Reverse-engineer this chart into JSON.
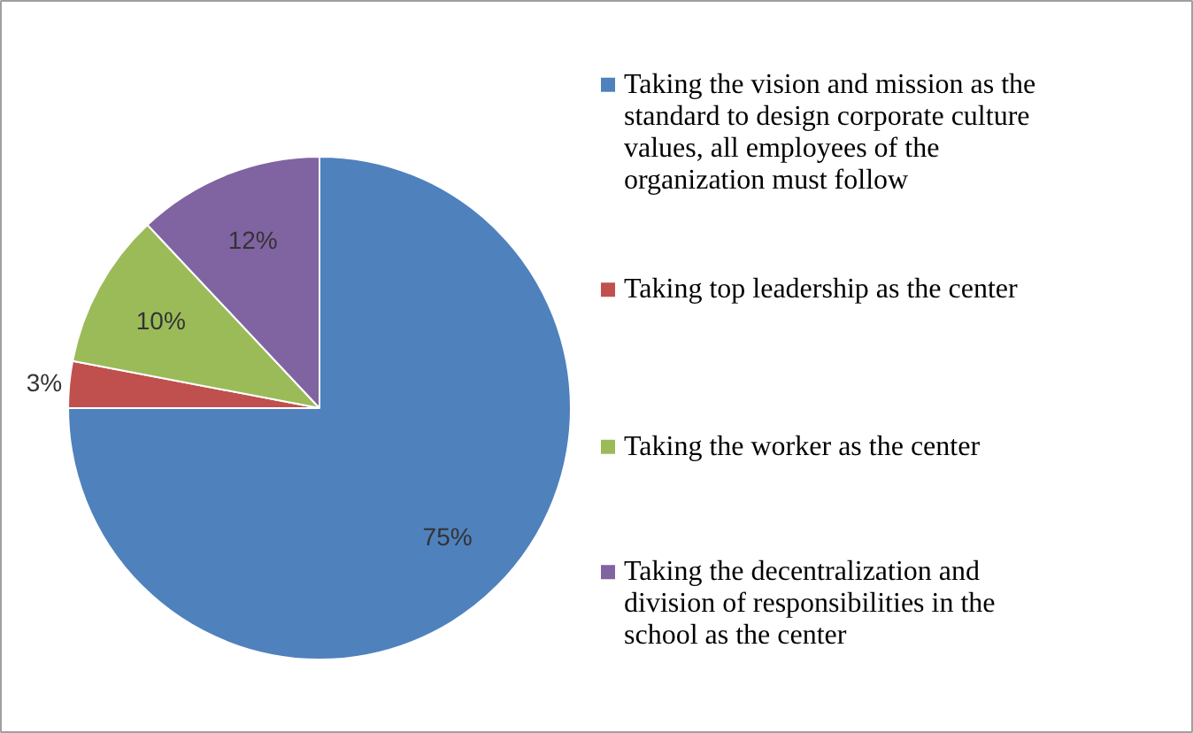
{
  "chart_data": {
    "type": "pie",
    "categories": [
      "Taking the vision and mission as the standard to design corporate culture values, all employees of the organization must follow",
      "Taking top leadership as the center",
      "Taking the worker as the center",
      "Taking the decentralization and division of responsibilities in the school as the center"
    ],
    "values": [
      75,
      3,
      10,
      12
    ],
    "value_labels": [
      "75%",
      "3%",
      "10%",
      "12%"
    ],
    "colors": [
      "#4f81bd",
      "#c0504d",
      "#9bbb59",
      "#8064a2"
    ],
    "legend": "right"
  }
}
